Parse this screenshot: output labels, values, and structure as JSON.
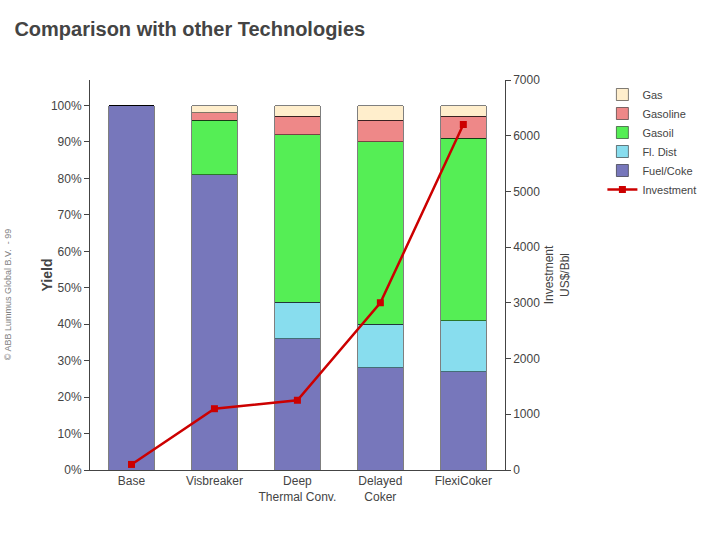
{
  "chart_data": {
    "type": "bar",
    "title": "Comparison with other Technologies",
    "categories": [
      "Base",
      "Visbreaker",
      "Deep\nThermal Conv.",
      "Delayed\nCoker",
      "FlexiCoker"
    ],
    "stacked": true,
    "series": [
      {
        "name": "Fuel/Coke",
        "type": "bar",
        "color": "#7777BB",
        "values": [
          100,
          81,
          36,
          28,
          27
        ]
      },
      {
        "name": "Fl. Dist",
        "type": "bar",
        "color": "#88DDEE",
        "values": [
          0,
          0,
          10,
          12,
          14
        ]
      },
      {
        "name": "Gasoil",
        "type": "bar",
        "color": "#55EE55",
        "values": [
          0,
          15,
          46,
          50,
          50
        ]
      },
      {
        "name": "Gasoline",
        "type": "bar",
        "color": "#EE8888",
        "values": [
          0,
          2,
          5,
          6,
          6
        ]
      },
      {
        "name": "Gas",
        "type": "bar",
        "color": "#FFEECC",
        "values": [
          0,
          2,
          3,
          4,
          3
        ]
      },
      {
        "name": "Investment",
        "type": "line",
        "axis": "y2",
        "color": "#CC0000",
        "marker": "square",
        "line_style": "solid",
        "values": [
          100,
          1100,
          1250,
          3000,
          6200
        ]
      }
    ],
    "ylabel": "Yield",
    "y2label": "Investment\nUS$/Bbl",
    "ylim": [
      0,
      107
    ],
    "yticks": [
      {
        "value": 0,
        "label": "0%"
      },
      {
        "value": 10,
        "label": "10%"
      },
      {
        "value": 20,
        "label": "20%"
      },
      {
        "value": 30,
        "label": "30%"
      },
      {
        "value": 40,
        "label": "40%"
      },
      {
        "value": 50,
        "label": "50%"
      },
      {
        "value": 60,
        "label": "60%"
      },
      {
        "value": 70,
        "label": "70%"
      },
      {
        "value": 80,
        "label": "80%"
      },
      {
        "value": 90,
        "label": "90%"
      },
      {
        "value": 100,
        "label": "100%"
      }
    ],
    "y2lim": [
      0,
      7000
    ],
    "y2ticks": [
      0,
      1000,
      2000,
      3000,
      4000,
      5000,
      6000,
      7000
    ],
    "grid": false,
    "legend": "right",
    "annotations": [
      "© ABB Lummus Global B.V.  - 99"
    ]
  }
}
